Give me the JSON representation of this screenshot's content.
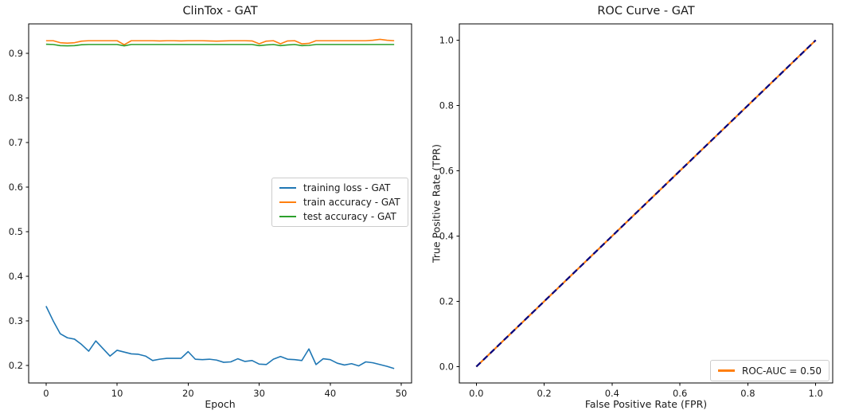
{
  "figure": {
    "background": "#ffffff"
  },
  "palette": {
    "axis": "#000000",
    "text": "#1a1a1a",
    "legend_border": "#cccccc",
    "series_blue": "#1f77b4",
    "series_orange": "#ff7f0e",
    "series_green": "#2ca02c",
    "series_navy": "#000080"
  },
  "chart_data": [
    {
      "type": "line",
      "title": "ClinTox - GAT",
      "xlabel": "Epoch",
      "ylabel": "",
      "grid": false,
      "xlim": [
        -2.45,
        51.45
      ],
      "ylim": [
        0.1607,
        0.9657
      ],
      "x_is_index": true,
      "xticks": [
        {
          "v": 0,
          "label": "0"
        },
        {
          "v": 10,
          "label": "10"
        },
        {
          "v": 20,
          "label": "20"
        },
        {
          "v": 30,
          "label": "30"
        },
        {
          "v": 40,
          "label": "40"
        },
        {
          "v": 50,
          "label": "50"
        }
      ],
      "yticks": [
        {
          "v": 0.2,
          "label": "0.2"
        },
        {
          "v": 0.3,
          "label": "0.3"
        },
        {
          "v": 0.4,
          "label": "0.4"
        },
        {
          "v": 0.5,
          "label": "0.5"
        },
        {
          "v": 0.6,
          "label": "0.6"
        },
        {
          "v": 0.7,
          "label": "0.7"
        },
        {
          "v": 0.8,
          "label": "0.8"
        },
        {
          "v": 0.9,
          "label": "0.9"
        }
      ],
      "series": [
        {
          "name": "training loss - GAT",
          "color": "#1f77b4",
          "width": 1.6,
          "values": [
            0.333,
            0.3,
            0.271,
            0.262,
            0.259,
            0.247,
            0.232,
            0.255,
            0.238,
            0.221,
            0.234,
            0.23,
            0.226,
            0.225,
            0.221,
            0.211,
            0.214,
            0.216,
            0.216,
            0.216,
            0.231,
            0.214,
            0.213,
            0.214,
            0.212,
            0.207,
            0.208,
            0.215,
            0.209,
            0.211,
            0.203,
            0.202,
            0.214,
            0.22,
            0.214,
            0.213,
            0.211,
            0.237,
            0.202,
            0.215,
            0.213,
            0.205,
            0.201,
            0.204,
            0.199,
            0.208,
            0.206,
            0.202,
            0.198,
            0.193
          ]
        },
        {
          "name": "train accuracy - GAT",
          "color": "#ff7f0e",
          "width": 1.6,
          "values": [
            0.928,
            0.928,
            0.9235,
            0.9225,
            0.9235,
            0.927,
            0.928,
            0.928,
            0.928,
            0.928,
            0.928,
            0.919,
            0.928,
            0.928,
            0.928,
            0.928,
            0.9275,
            0.928,
            0.928,
            0.9275,
            0.928,
            0.928,
            0.928,
            0.9275,
            0.927,
            0.9275,
            0.928,
            0.928,
            0.928,
            0.9275,
            0.921,
            0.927,
            0.928,
            0.921,
            0.9275,
            0.928,
            0.921,
            0.922,
            0.928,
            0.928,
            0.928,
            0.928,
            0.928,
            0.928,
            0.928,
            0.928,
            0.929,
            0.931,
            0.929,
            0.928
          ]
        },
        {
          "name": "test accuracy - GAT",
          "color": "#2ca02c",
          "width": 1.6,
          "values": [
            0.92,
            0.9195,
            0.917,
            0.9165,
            0.917,
            0.919,
            0.9195,
            0.9195,
            0.9195,
            0.9195,
            0.9195,
            0.9165,
            0.9195,
            0.9195,
            0.9195,
            0.9195,
            0.9195,
            0.9195,
            0.9195,
            0.9195,
            0.9195,
            0.9195,
            0.9195,
            0.9195,
            0.9195,
            0.9195,
            0.9195,
            0.9195,
            0.9195,
            0.9195,
            0.917,
            0.9185,
            0.9195,
            0.917,
            0.9185,
            0.9195,
            0.917,
            0.9175,
            0.9195,
            0.9195,
            0.9195,
            0.9195,
            0.9195,
            0.9195,
            0.9195,
            0.9195,
            0.9195,
            0.9195,
            0.9195,
            0.9195
          ]
        }
      ],
      "legend": {
        "loc": "center right",
        "series": [
          0,
          1,
          2
        ]
      }
    },
    {
      "type": "line",
      "title": "ROC Curve - GAT",
      "xlabel": "False Positive Rate (FPR)",
      "ylabel": "True Positive Rate (TPR)",
      "grid": false,
      "xlim": [
        -0.05,
        1.05
      ],
      "ylim": [
        -0.05,
        1.05
      ],
      "roc_auc": "0.50",
      "xticks": [
        {
          "v": 0.0,
          "label": "0.0"
        },
        {
          "v": 0.2,
          "label": "0.2"
        },
        {
          "v": 0.4,
          "label": "0.4"
        },
        {
          "v": 0.6,
          "label": "0.6"
        },
        {
          "v": 0.8,
          "label": "0.8"
        },
        {
          "v": 1.0,
          "label": "1.0"
        }
      ],
      "yticks": [
        {
          "v": 0.0,
          "label": "0.0"
        },
        {
          "v": 0.2,
          "label": "0.2"
        },
        {
          "v": 0.4,
          "label": "0.4"
        },
        {
          "v": 0.6,
          "label": "0.6"
        },
        {
          "v": 0.8,
          "label": "0.8"
        },
        {
          "v": 1.0,
          "label": "1.0"
        }
      ],
      "series": [
        {
          "name": "ROC-AUC = 0.50",
          "color": "#ff7f0e",
          "width": 2.2,
          "x": [
            0,
            1
          ],
          "values": [
            0,
            1
          ]
        },
        {
          "name": "chance diagonal",
          "color": "#000080",
          "width": 2.2,
          "dash": "7.5 4.5",
          "x": [
            0,
            1
          ],
          "values": [
            0,
            1
          ]
        }
      ],
      "legend": {
        "loc": "lower right",
        "series": [
          0
        ]
      }
    }
  ]
}
